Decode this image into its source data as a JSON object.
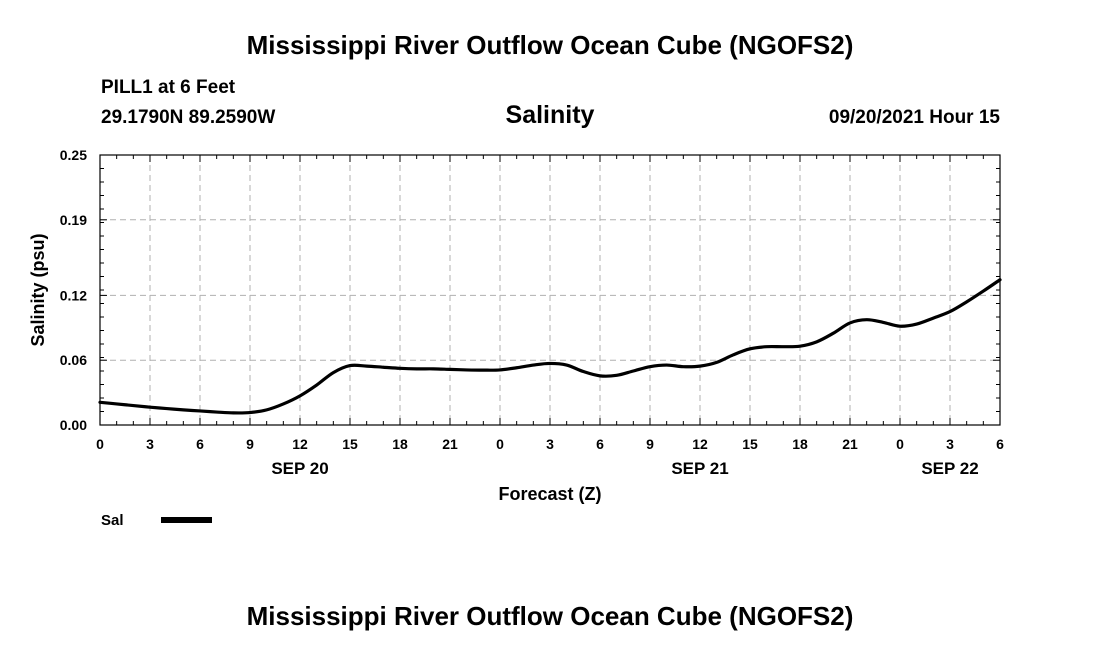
{
  "header": {
    "title": "Mississippi River Outflow Ocean Cube (NGOFS2)",
    "station": "PILL1 at 6 Feet",
    "location": "29.1790N  89.2590W",
    "variable": "Salinity",
    "datetime": "09/20/2021 Hour 15"
  },
  "footer": {
    "title": "Mississippi River Outflow Ocean Cube (NGOFS2)"
  },
  "legend": {
    "label": "Sal"
  },
  "colors": {
    "line": "#000000",
    "grid": "#b0b0b0"
  },
  "chart_data": {
    "type": "line",
    "title": "Salinity",
    "xlabel": "Forecast (Z)",
    "ylabel": "Salinity (psu)",
    "xlim": [
      0,
      54
    ],
    "ylim": [
      0,
      0.25
    ],
    "yticks": [
      0,
      0.06,
      0.12,
      0.19,
      0.25
    ],
    "ytick_labels": [
      "0.00",
      "0.06",
      "0.12",
      "0.19",
      "0.25"
    ],
    "xticks": [
      0,
      3,
      6,
      9,
      12,
      15,
      18,
      21,
      24,
      27,
      30,
      33,
      36,
      39,
      42,
      45,
      48,
      51,
      54
    ],
    "xtick_labels": [
      "0",
      "3",
      "6",
      "9",
      "12",
      "15",
      "18",
      "21",
      "0",
      "3",
      "6",
      "9",
      "12",
      "15",
      "18",
      "21",
      "0",
      "3",
      "6"
    ],
    "date_labels": [
      {
        "x": 12,
        "label": "SEP 20"
      },
      {
        "x": 36,
        "label": "SEP 21"
      },
      {
        "x": 51,
        "label": "SEP 22"
      }
    ],
    "grid": true,
    "series": [
      {
        "name": "Sal",
        "x": [
          0,
          1,
          2,
          3,
          4,
          5,
          6,
          7,
          8,
          9,
          10,
          11,
          12,
          13,
          14,
          15,
          16,
          17,
          18,
          19,
          20,
          21,
          22,
          23,
          24,
          25,
          26,
          27,
          28,
          29,
          30,
          31,
          32,
          33,
          34,
          35,
          36,
          37,
          38,
          39,
          40,
          41,
          42,
          43,
          44,
          45,
          46,
          47,
          48,
          49,
          50,
          51,
          52,
          53,
          54
        ],
        "values": [
          0.021,
          0.0195,
          0.018,
          0.0165,
          0.0152,
          0.014,
          0.013,
          0.012,
          0.0112,
          0.0115,
          0.014,
          0.0195,
          0.027,
          0.037,
          0.0485,
          0.055,
          0.0545,
          0.0535,
          0.0525,
          0.052,
          0.052,
          0.0515,
          0.051,
          0.0508,
          0.051,
          0.053,
          0.0555,
          0.057,
          0.0555,
          0.0495,
          0.0455,
          0.046,
          0.05,
          0.054,
          0.0555,
          0.054,
          0.0545,
          0.058,
          0.065,
          0.0705,
          0.0725,
          0.0725,
          0.073,
          0.077,
          0.085,
          0.0945,
          0.0975,
          0.095,
          0.0915,
          0.0935,
          0.099,
          0.105,
          0.114,
          0.124,
          0.1345
        ]
      }
    ]
  }
}
